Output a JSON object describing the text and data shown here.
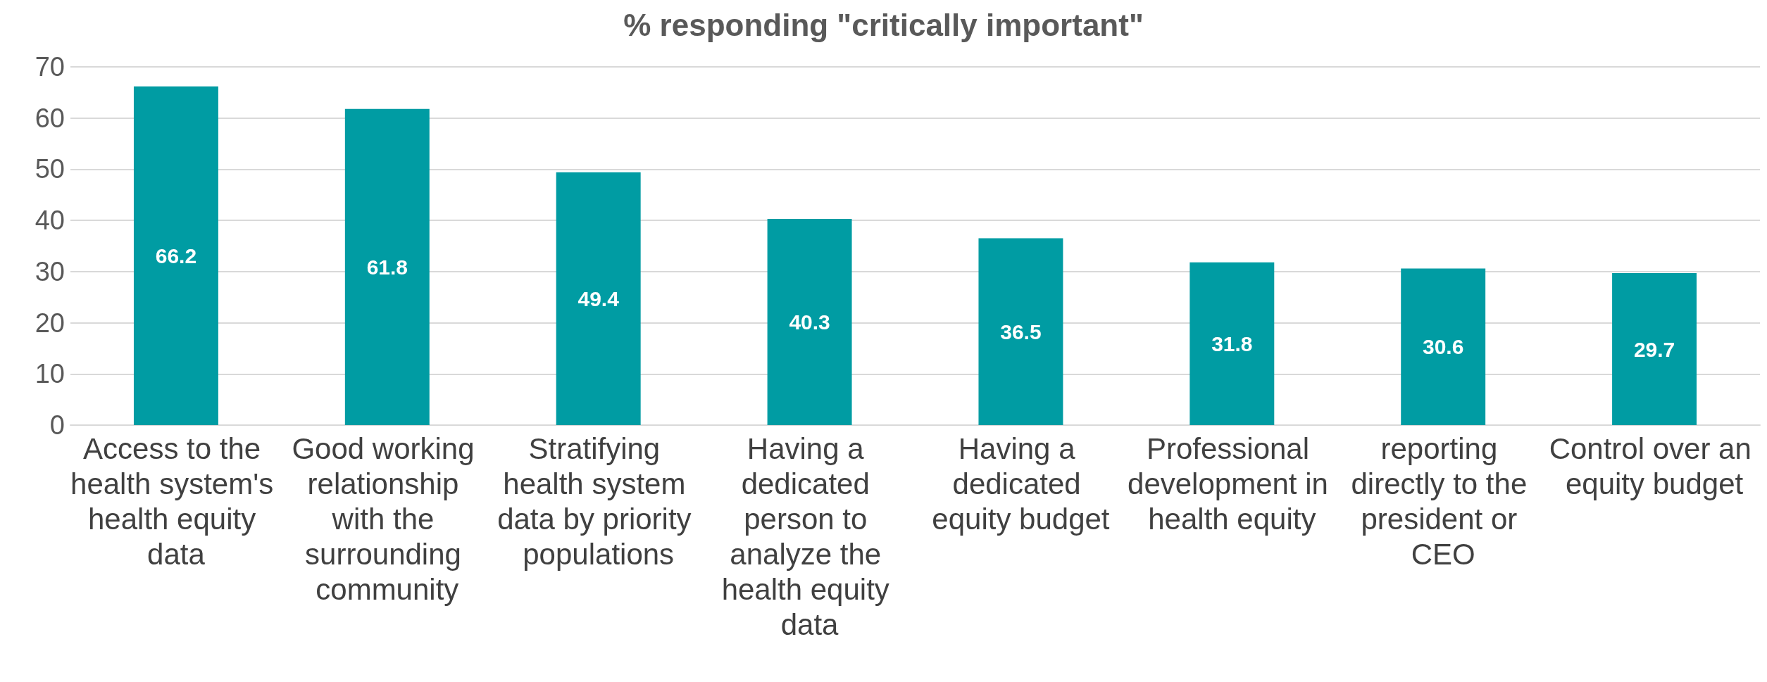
{
  "chart_data": {
    "type": "bar",
    "title": "% responding \"critically important\"",
    "categories": [
      "Access to the health system's health equity data",
      "Good working relationship with the surrounding community",
      "Stratifying health system data by priority populations",
      "Having a dedicated person to analyze the health equity data",
      "Having a dedicated equity budget",
      "Professional development in health equity",
      "reporting directly to the president or CEO",
      "Control over an equity budget"
    ],
    "values": [
      66.2,
      61.8,
      49.4,
      40.3,
      36.5,
      31.8,
      30.6,
      29.7
    ],
    "color": "#009ca3",
    "ylim": [
      0,
      70
    ],
    "yticks": [
      0,
      10,
      20,
      30,
      40,
      50,
      60,
      70
    ],
    "grid": "y",
    "data_labels": true
  }
}
